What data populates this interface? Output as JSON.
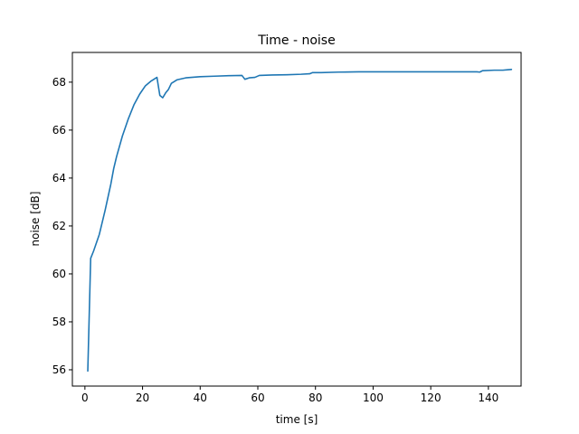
{
  "chart_data": {
    "type": "line",
    "title": "Time - noise",
    "xlabel": "time [s]",
    "ylabel": "noise [dB]",
    "xlim": [
      -4.35,
      151.35
    ],
    "ylim": [
      55.32,
      69.24
    ],
    "x_ticks": [
      0,
      20,
      40,
      60,
      80,
      100,
      120,
      140
    ],
    "y_ticks": [
      56,
      58,
      60,
      62,
      64,
      66,
      68
    ],
    "grid": false,
    "series": [
      {
        "color": "#1f77b4",
        "points": [
          [
            1,
            55.95
          ],
          [
            2,
            60.65
          ],
          [
            3,
            60.95
          ],
          [
            5,
            61.65
          ],
          [
            7,
            62.65
          ],
          [
            9,
            63.75
          ],
          [
            10,
            64.4
          ],
          [
            11,
            64.9
          ],
          [
            13,
            65.75
          ],
          [
            15,
            66.45
          ],
          [
            17,
            67.05
          ],
          [
            19,
            67.5
          ],
          [
            21,
            67.85
          ],
          [
            23,
            68.05
          ],
          [
            25,
            68.2
          ],
          [
            26,
            67.45
          ],
          [
            27,
            67.35
          ],
          [
            28,
            67.55
          ],
          [
            29,
            67.7
          ],
          [
            30,
            67.95
          ],
          [
            32,
            68.1
          ],
          [
            35,
            68.18
          ],
          [
            40,
            68.23
          ],
          [
            45,
            68.25
          ],
          [
            50,
            68.27
          ],
          [
            54.5,
            68.28
          ],
          [
            55.5,
            68.12
          ],
          [
            57,
            68.18
          ],
          [
            59,
            68.2
          ],
          [
            60.5,
            68.28
          ],
          [
            65,
            68.3
          ],
          [
            70,
            68.31
          ],
          [
            75,
            68.33
          ],
          [
            78,
            68.35
          ],
          [
            79,
            68.4
          ],
          [
            82,
            68.4
          ],
          [
            88,
            68.42
          ],
          [
            95,
            68.43
          ],
          [
            110,
            68.43
          ],
          [
            125,
            68.43
          ],
          [
            136,
            68.43
          ],
          [
            137,
            68.42
          ],
          [
            138,
            68.48
          ],
          [
            142,
            68.5
          ],
          [
            145,
            68.5
          ],
          [
            147,
            68.52
          ],
          [
            148,
            68.53
          ]
        ]
      }
    ]
  }
}
